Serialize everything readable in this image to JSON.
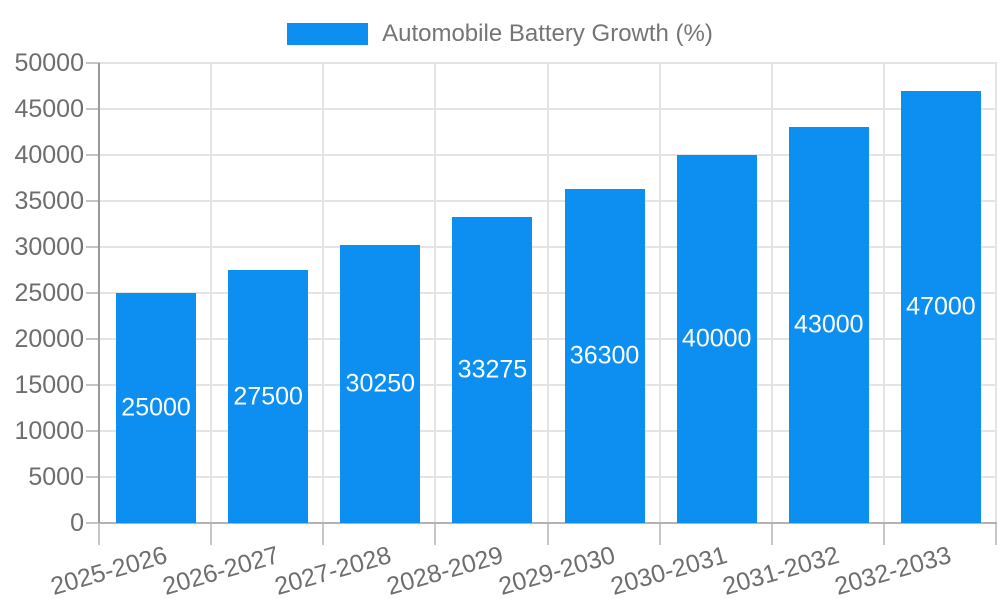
{
  "legend": {
    "items": [
      {
        "label": "Automobile Battery Growth (%)",
        "swatch_color": "#0d8ff2"
      }
    ]
  },
  "chart_data": {
    "type": "bar",
    "title": "Automobile Battery Growth (%)",
    "categories": [
      "2025-2026",
      "2026-2027",
      "2027-2028",
      "2028-2029",
      "2029-2030",
      "2030-2031",
      "2031-2032",
      "2032-2033"
    ],
    "series": [
      {
        "name": "Automobile Battery Growth (%)",
        "values": [
          25000,
          27500,
          30250,
          33275,
          36300,
          40000,
          43000,
          47000
        ]
      }
    ],
    "bar_labels": [
      "25000",
      "27500",
      "30250",
      "33275",
      "36300",
      "40000",
      "43000",
      "47000"
    ],
    "xlabel": "",
    "ylabel": "",
    "ylim": [
      0,
      50000
    ],
    "yticks": [
      0,
      5000,
      10000,
      15000,
      20000,
      25000,
      30000,
      35000,
      40000,
      45000,
      50000
    ],
    "ytick_labels": [
      "0",
      "5000",
      "10000",
      "15000",
      "20000",
      "25000",
      "30000",
      "35000",
      "40000",
      "45000",
      "50000"
    ],
    "grid": true,
    "legend_position": "top-center",
    "x_tick_rotation_deg": -16
  },
  "colors": {
    "bar": "#0d8ff2",
    "bar_label": "#ffffff",
    "axis_text": "#6e6e6e",
    "legend_text": "#757575",
    "gridline": "#e4e4e4",
    "x_axis_line": "#b3b3b3",
    "y_axis_line": "#999999",
    "tick": "#c6c6c6",
    "background": "#ffffff"
  }
}
